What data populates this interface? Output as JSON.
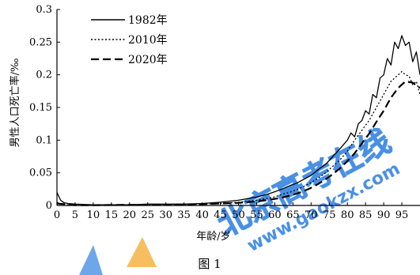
{
  "figure_caption": "图 1",
  "watermark": {
    "text1": "北京高考在线",
    "text2": "www.gaokzx.com"
  },
  "colors": {
    "axis": "#000000",
    "line": "#000000",
    "watermark_blue": "#2a7de1",
    "watermark_orange": "#f5a623"
  },
  "chart_data": {
    "type": "line",
    "ylabel": "男性人口死亡率/‰",
    "xlabel": "年龄/岁",
    "xlim": [
      0,
      100
    ],
    "ylim": [
      0,
      0.3
    ],
    "x_ticks": [
      "0",
      "5",
      "10",
      "15",
      "20",
      "25",
      "30",
      "35",
      "40",
      "45",
      "50",
      "55",
      "60",
      "65",
      "70",
      "75",
      "80",
      "85",
      "90",
      "95"
    ],
    "y_ticks": [
      "0",
      "0.05",
      "0.1",
      "0.15",
      "0.2",
      "0.25",
      "0.3"
    ],
    "legend_position": "top-left",
    "series": [
      {
        "name": "1982年",
        "style": "solid",
        "x": [
          0,
          1,
          2,
          3,
          5,
          10,
          15,
          20,
          25,
          30,
          35,
          40,
          45,
          50,
          55,
          58,
          60,
          62,
          64,
          66,
          68,
          70,
          72,
          74,
          76,
          78,
          80,
          81,
          82,
          83,
          84,
          85,
          86,
          87,
          88,
          89,
          90,
          91,
          92,
          93,
          94,
          95,
          96,
          97,
          98,
          99,
          100
        ],
        "y": [
          0.02,
          0.008,
          0.004,
          0.003,
          0.002,
          0.001,
          0.001,
          0.001,
          0.002,
          0.002,
          0.002,
          0.003,
          0.005,
          0.008,
          0.013,
          0.017,
          0.021,
          0.025,
          0.03,
          0.034,
          0.04,
          0.046,
          0.055,
          0.063,
          0.075,
          0.087,
          0.1,
          0.111,
          0.105,
          0.125,
          0.13,
          0.145,
          0.14,
          0.17,
          0.165,
          0.195,
          0.2,
          0.225,
          0.215,
          0.25,
          0.24,
          0.26,
          0.245,
          0.25,
          0.22,
          0.235,
          0.2
        ]
      },
      {
        "name": "2010年",
        "style": "dotted",
        "x": [
          0,
          1,
          3,
          5,
          10,
          20,
          30,
          40,
          45,
          50,
          55,
          60,
          62,
          64,
          66,
          68,
          70,
          72,
          74,
          76,
          78,
          80,
          82,
          84,
          86,
          88,
          90,
          92,
          94,
          95,
          96,
          97,
          98,
          99,
          100
        ],
        "y": [
          0.005,
          0.002,
          0.001,
          0.0005,
          0.0005,
          0.001,
          0.001,
          0.002,
          0.003,
          0.005,
          0.008,
          0.013,
          0.017,
          0.02,
          0.024,
          0.029,
          0.035,
          0.042,
          0.05,
          0.06,
          0.07,
          0.083,
          0.1,
          0.115,
          0.13,
          0.15,
          0.17,
          0.19,
          0.2,
          0.205,
          0.2,
          0.198,
          0.185,
          0.19,
          0.17
        ]
      },
      {
        "name": "2020年",
        "style": "dashed",
        "x": [
          0,
          5,
          10,
          20,
          30,
          40,
          45,
          50,
          55,
          60,
          62,
          64,
          66,
          68,
          70,
          72,
          74,
          76,
          78,
          80,
          82,
          84,
          86,
          88,
          90,
          92,
          94,
          96,
          98,
          100
        ],
        "y": [
          0.003,
          0.0005,
          0.0005,
          0.001,
          0.001,
          0.002,
          0.003,
          0.004,
          0.006,
          0.01,
          0.012,
          0.015,
          0.018,
          0.022,
          0.027,
          0.033,
          0.04,
          0.048,
          0.057,
          0.068,
          0.08,
          0.095,
          0.11,
          0.128,
          0.145,
          0.165,
          0.18,
          0.19,
          0.188,
          0.18
        ]
      }
    ]
  }
}
